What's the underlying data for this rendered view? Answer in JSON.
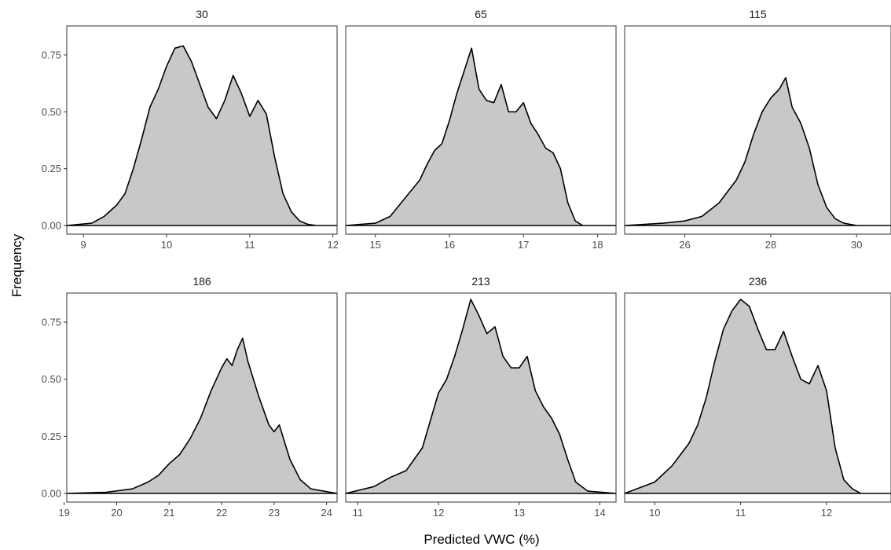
{
  "chart_data": {
    "type": "area",
    "xlabel": "Predicted VWC (%)",
    "ylabel": "Frequency",
    "ylim": [
      0,
      0.85
    ],
    "y_ticks": [
      0,
      0.25,
      0.5,
      0.75
    ],
    "y_tick_labels": [
      "0.00",
      "0.25",
      "0.50",
      "0.75"
    ],
    "grid": false,
    "facets": [
      {
        "label": "30",
        "xlim": [
          8.8,
          12.05
        ],
        "x_ticks": [
          9,
          10,
          11,
          12
        ],
        "x_tick_labels": [
          "9",
          "10",
          "11",
          "12"
        ],
        "x": [
          8.8,
          9.1,
          9.25,
          9.4,
          9.5,
          9.6,
          9.7,
          9.8,
          9.9,
          10.0,
          10.1,
          10.2,
          10.3,
          10.4,
          10.5,
          10.6,
          10.7,
          10.8,
          10.9,
          11.0,
          11.1,
          11.2,
          11.3,
          11.4,
          11.5,
          11.6,
          11.7,
          11.8,
          12.05
        ],
        "y": [
          0.0,
          0.01,
          0.04,
          0.09,
          0.14,
          0.25,
          0.38,
          0.52,
          0.6,
          0.7,
          0.78,
          0.79,
          0.72,
          0.62,
          0.52,
          0.47,
          0.55,
          0.66,
          0.58,
          0.48,
          0.55,
          0.49,
          0.3,
          0.14,
          0.06,
          0.02,
          0.005,
          0.0,
          0.0
        ]
      },
      {
        "label": "65",
        "xlim": [
          14.6,
          18.25
        ],
        "x_ticks": [
          15,
          16,
          17,
          18
        ],
        "x_tick_labels": [
          "15",
          "16",
          "17",
          "18"
        ],
        "x": [
          14.6,
          15.0,
          15.2,
          15.4,
          15.6,
          15.7,
          15.8,
          15.9,
          16.0,
          16.1,
          16.2,
          16.3,
          16.4,
          16.5,
          16.6,
          16.7,
          16.8,
          16.9,
          17.0,
          17.1,
          17.2,
          17.3,
          17.4,
          17.5,
          17.6,
          17.7,
          17.8,
          18.25
        ],
        "y": [
          0.0,
          0.01,
          0.04,
          0.12,
          0.2,
          0.27,
          0.33,
          0.36,
          0.46,
          0.58,
          0.68,
          0.78,
          0.6,
          0.55,
          0.54,
          0.62,
          0.5,
          0.5,
          0.54,
          0.45,
          0.4,
          0.34,
          0.32,
          0.25,
          0.1,
          0.02,
          0.0,
          0.0
        ]
      },
      {
        "label": "115",
        "xlim": [
          24.6,
          30.8
        ],
        "x_ticks": [
          26,
          28,
          30
        ],
        "x_tick_labels": [
          "26",
          "28",
          "30"
        ],
        "x": [
          24.6,
          25.5,
          26.0,
          26.4,
          26.6,
          26.8,
          27.0,
          27.2,
          27.4,
          27.6,
          27.8,
          28.0,
          28.2,
          28.35,
          28.5,
          28.7,
          28.9,
          29.1,
          29.3,
          29.5,
          29.7,
          30.0,
          30.8
        ],
        "y": [
          0.0,
          0.01,
          0.02,
          0.04,
          0.07,
          0.1,
          0.15,
          0.2,
          0.28,
          0.4,
          0.5,
          0.56,
          0.6,
          0.65,
          0.52,
          0.45,
          0.34,
          0.18,
          0.08,
          0.03,
          0.01,
          0.0,
          0.0
        ]
      },
      {
        "label": "186",
        "xlim": [
          19.05,
          24.2
        ],
        "x_ticks": [
          19,
          20,
          21,
          22,
          23,
          24
        ],
        "x_tick_labels": [
          "19",
          "20",
          "21",
          "22",
          "23",
          "24"
        ],
        "x": [
          19.05,
          19.8,
          20.3,
          20.6,
          20.8,
          21.0,
          21.2,
          21.4,
          21.6,
          21.8,
          22.0,
          22.1,
          22.2,
          22.3,
          22.4,
          22.5,
          22.7,
          22.9,
          23.0,
          23.1,
          23.3,
          23.5,
          23.7,
          24.2
        ],
        "y": [
          0.0,
          0.005,
          0.02,
          0.05,
          0.08,
          0.13,
          0.17,
          0.24,
          0.33,
          0.45,
          0.55,
          0.59,
          0.56,
          0.63,
          0.68,
          0.58,
          0.43,
          0.3,
          0.27,
          0.3,
          0.15,
          0.06,
          0.02,
          0.0
        ]
      },
      {
        "label": "213",
        "xlim": [
          10.85,
          14.2
        ],
        "x_ticks": [
          11,
          12,
          13,
          14
        ],
        "x_tick_labels": [
          "11",
          "12",
          "13",
          "14"
        ],
        "x": [
          10.85,
          11.2,
          11.4,
          11.6,
          11.8,
          11.9,
          12.0,
          12.1,
          12.2,
          12.3,
          12.4,
          12.5,
          12.6,
          12.7,
          12.8,
          12.9,
          13.0,
          13.1,
          13.2,
          13.3,
          13.4,
          13.5,
          13.6,
          13.7,
          13.85,
          14.2
        ],
        "y": [
          0.0,
          0.03,
          0.07,
          0.1,
          0.2,
          0.32,
          0.44,
          0.5,
          0.6,
          0.72,
          0.85,
          0.78,
          0.7,
          0.73,
          0.6,
          0.55,
          0.55,
          0.6,
          0.45,
          0.38,
          0.33,
          0.26,
          0.15,
          0.05,
          0.01,
          0.0
        ]
      },
      {
        "label": "236",
        "xlim": [
          9.65,
          12.75
        ],
        "x_ticks": [
          10,
          11,
          12
        ],
        "x_tick_labels": [
          "10",
          "11",
          "12"
        ],
        "x": [
          9.65,
          10.0,
          10.2,
          10.4,
          10.5,
          10.6,
          10.7,
          10.8,
          10.9,
          11.0,
          11.1,
          11.2,
          11.3,
          11.4,
          11.5,
          11.6,
          11.7,
          11.8,
          11.9,
          12.0,
          12.1,
          12.2,
          12.3,
          12.4,
          12.75
        ],
        "y": [
          0.0,
          0.05,
          0.12,
          0.22,
          0.3,
          0.42,
          0.58,
          0.72,
          0.8,
          0.85,
          0.82,
          0.72,
          0.63,
          0.63,
          0.71,
          0.6,
          0.5,
          0.48,
          0.56,
          0.45,
          0.2,
          0.06,
          0.02,
          0.0,
          0.0
        ]
      }
    ]
  }
}
